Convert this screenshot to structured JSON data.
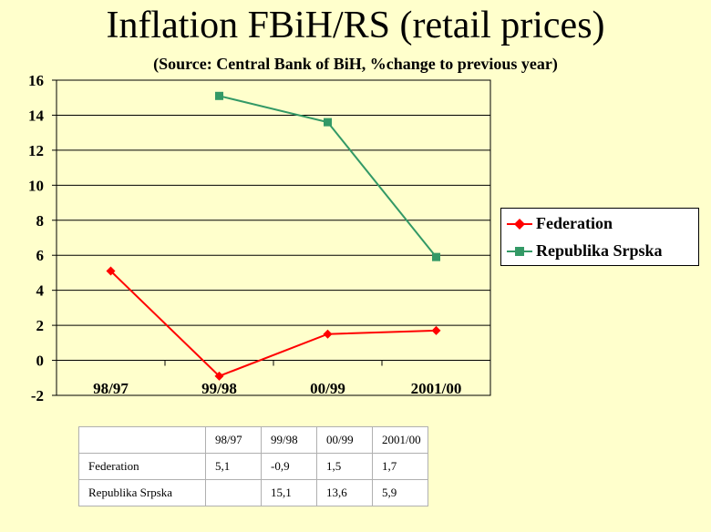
{
  "colors": {
    "background": "#ffffcc",
    "federation": "#ff0000",
    "republika_srpska": "#339966"
  },
  "chart_data": {
    "type": "line",
    "title": "Inflation FBiH/RS (retail prices)",
    "subtitle": "(Source: Central Bank of BiH, %change to previous year)",
    "categories": [
      "98/97",
      "99/98",
      "00/99",
      "2001/00"
    ],
    "ylim": [
      -2,
      16
    ],
    "yticks": [
      "16",
      "14",
      "12",
      "10",
      "8",
      "6",
      "4",
      "2",
      "0",
      "-2"
    ],
    "grid": true,
    "legend_position": "right",
    "series": [
      {
        "name": "Federation",
        "values": [
          5.1,
          -0.9,
          1.5,
          1.7
        ],
        "marker": "diamond"
      },
      {
        "name": "Republika Srpska",
        "values": [
          null,
          15.1,
          13.6,
          5.9
        ],
        "marker": "square"
      }
    ]
  },
  "table": {
    "header": [
      "",
      "98/97",
      "99/98",
      "00/99",
      "2001/00"
    ],
    "rows": [
      {
        "label": "Federation",
        "cells": [
          "5,1",
          "-0,9",
          "1,5",
          "1,7"
        ]
      },
      {
        "label": "Republika Srpska",
        "cells": [
          "",
          "15,1",
          "13,6",
          "5,9"
        ]
      }
    ]
  }
}
